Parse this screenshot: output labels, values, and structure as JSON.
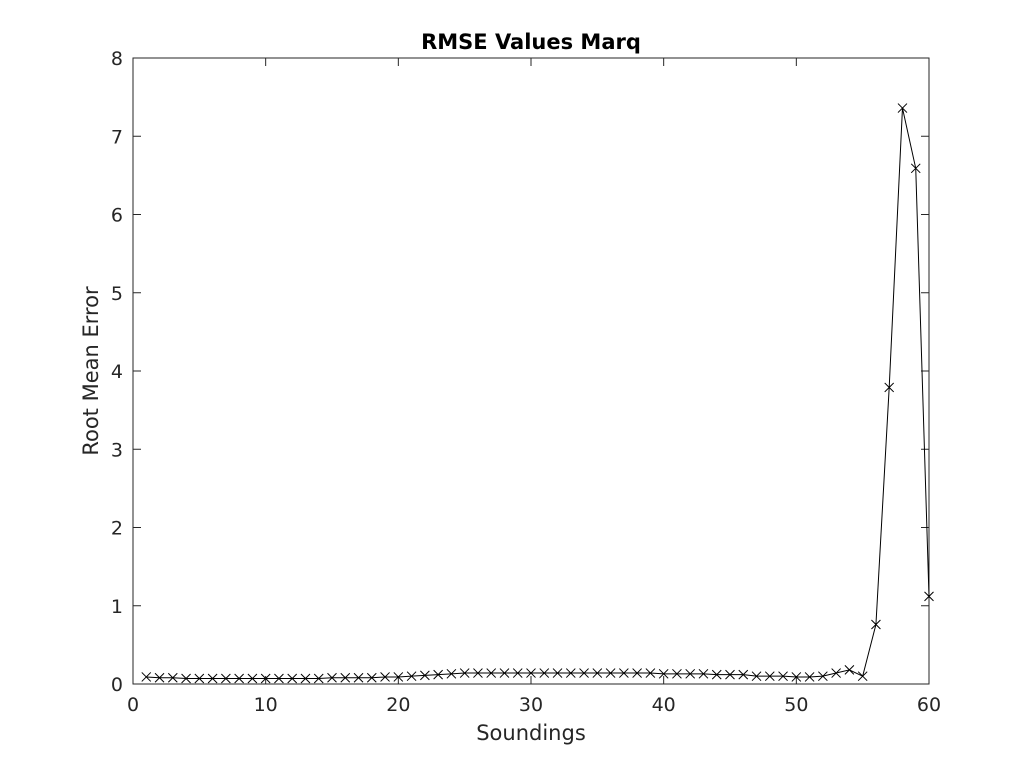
{
  "chart_data": {
    "type": "line",
    "title": "RMSE Values Marq",
    "xlabel": "Soundings",
    "ylabel": "Root Mean Error",
    "xlim": [
      0,
      60
    ],
    "ylim": [
      0,
      8
    ],
    "xticks": [
      0,
      10,
      20,
      30,
      40,
      50,
      60
    ],
    "yticks": [
      0,
      1,
      2,
      3,
      4,
      5,
      6,
      7,
      8
    ],
    "grid": false,
    "box": true,
    "marker": "x",
    "line_color": "#000000",
    "series": [
      {
        "x": [
          1,
          2,
          3,
          4,
          5,
          6,
          7,
          8,
          9,
          10,
          11,
          12,
          13,
          14,
          15,
          16,
          17,
          18,
          19,
          20,
          21,
          22,
          23,
          24,
          25,
          26,
          27,
          28,
          29,
          30,
          31,
          32,
          33,
          34,
          35,
          36,
          37,
          38,
          39,
          40,
          41,
          42,
          43,
          44,
          45,
          46,
          47,
          48,
          49,
          50,
          51,
          52,
          53,
          54,
          55,
          56,
          57,
          58,
          59,
          60
        ],
        "values": [
          0.09,
          0.08,
          0.08,
          0.07,
          0.07,
          0.07,
          0.07,
          0.07,
          0.07,
          0.07,
          0.07,
          0.07,
          0.07,
          0.07,
          0.08,
          0.08,
          0.08,
          0.08,
          0.09,
          0.09,
          0.1,
          0.11,
          0.12,
          0.13,
          0.14,
          0.14,
          0.14,
          0.14,
          0.14,
          0.14,
          0.14,
          0.14,
          0.14,
          0.14,
          0.14,
          0.14,
          0.14,
          0.14,
          0.14,
          0.13,
          0.13,
          0.13,
          0.13,
          0.12,
          0.12,
          0.12,
          0.1,
          0.1,
          0.1,
          0.09,
          0.09,
          0.1,
          0.14,
          0.18,
          0.1,
          0.76,
          3.79,
          7.36,
          6.59,
          1.12
        ]
      }
    ]
  }
}
